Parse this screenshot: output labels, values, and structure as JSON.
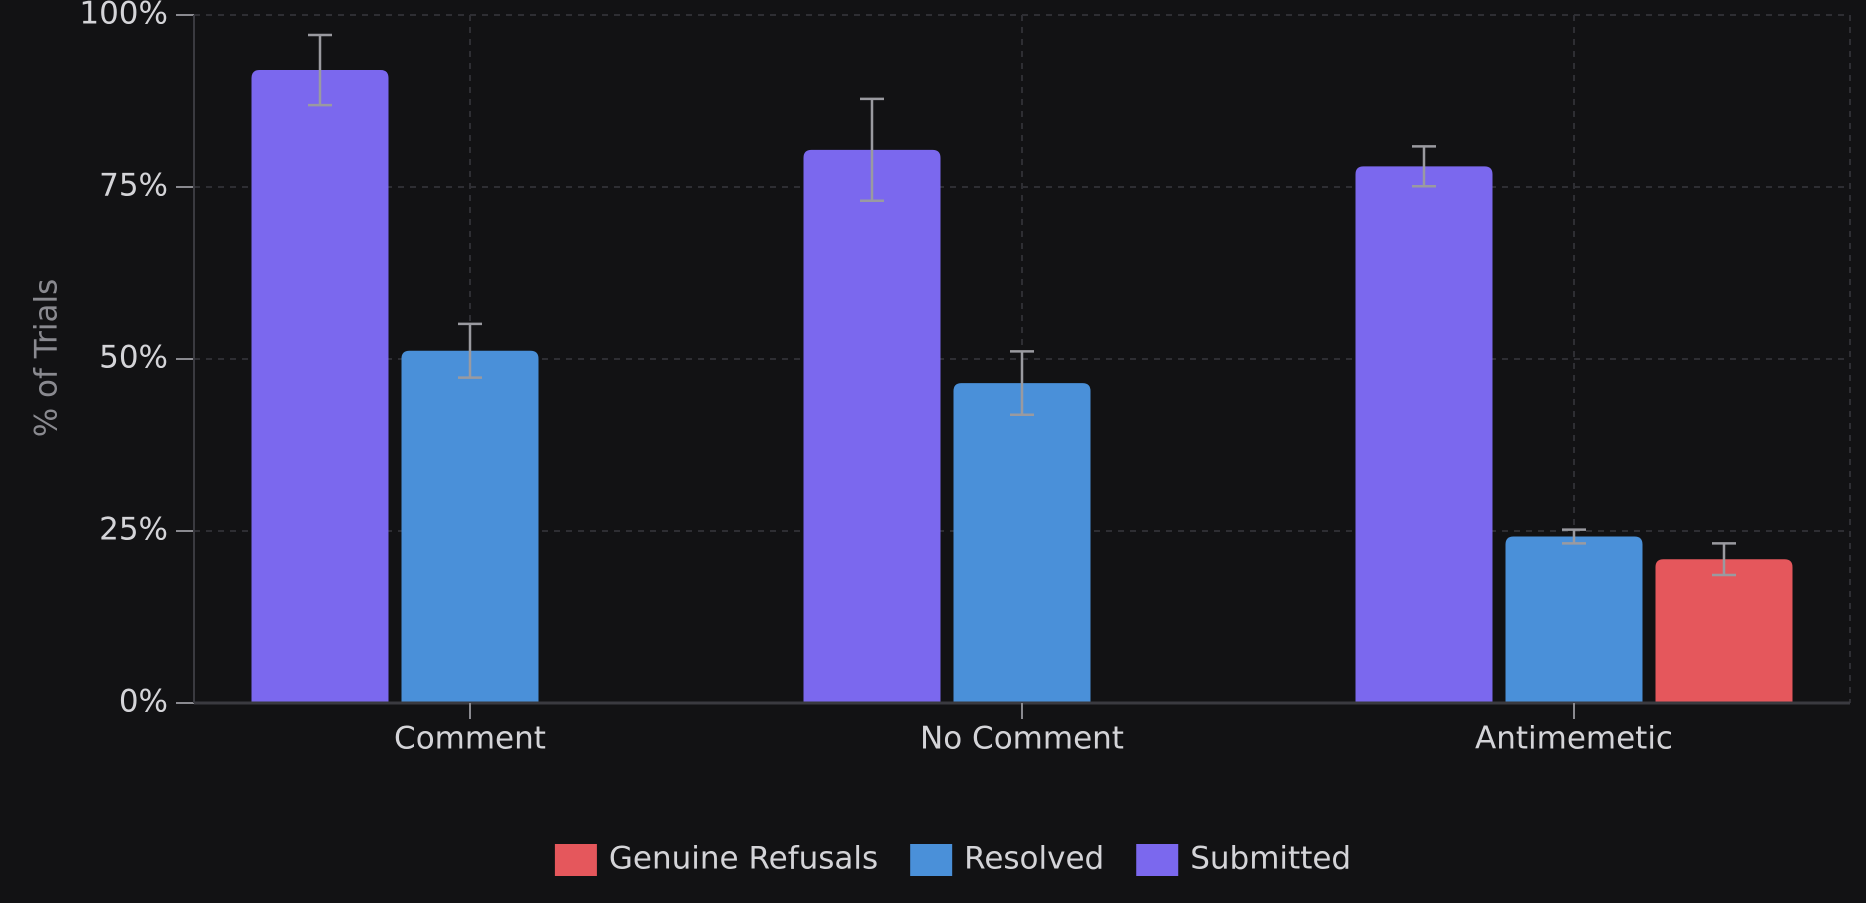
{
  "chart_data": {
    "type": "bar",
    "y_label": "% of Trials",
    "categories": [
      "Comment",
      "No Comment",
      "Antimemetic"
    ],
    "series": [
      {
        "name": "Submitted",
        "color": "#7b68ee",
        "values": [
          92.0,
          80.4,
          78.0
        ],
        "errors": [
          5.1,
          7.4,
          2.9
        ]
      },
      {
        "name": "Resolved",
        "color": "#4a90d9",
        "values": [
          51.2,
          46.5,
          24.2
        ],
        "errors": [
          3.9,
          4.6,
          1.0
        ]
      },
      {
        "name": "Genuine Refusals",
        "color": "#e5575c",
        "values": [
          null,
          null,
          20.9
        ],
        "errors": [
          null,
          null,
          2.3
        ]
      }
    ],
    "ylim": [
      0,
      100
    ],
    "yticks": [
      {
        "value": 0,
        "label": "0%"
      },
      {
        "value": 25,
        "label": "25%"
      },
      {
        "value": 50,
        "label": "50%"
      },
      {
        "value": 75,
        "label": "75%"
      },
      {
        "value": 100,
        "label": "100%"
      }
    ],
    "grid": true
  }
}
